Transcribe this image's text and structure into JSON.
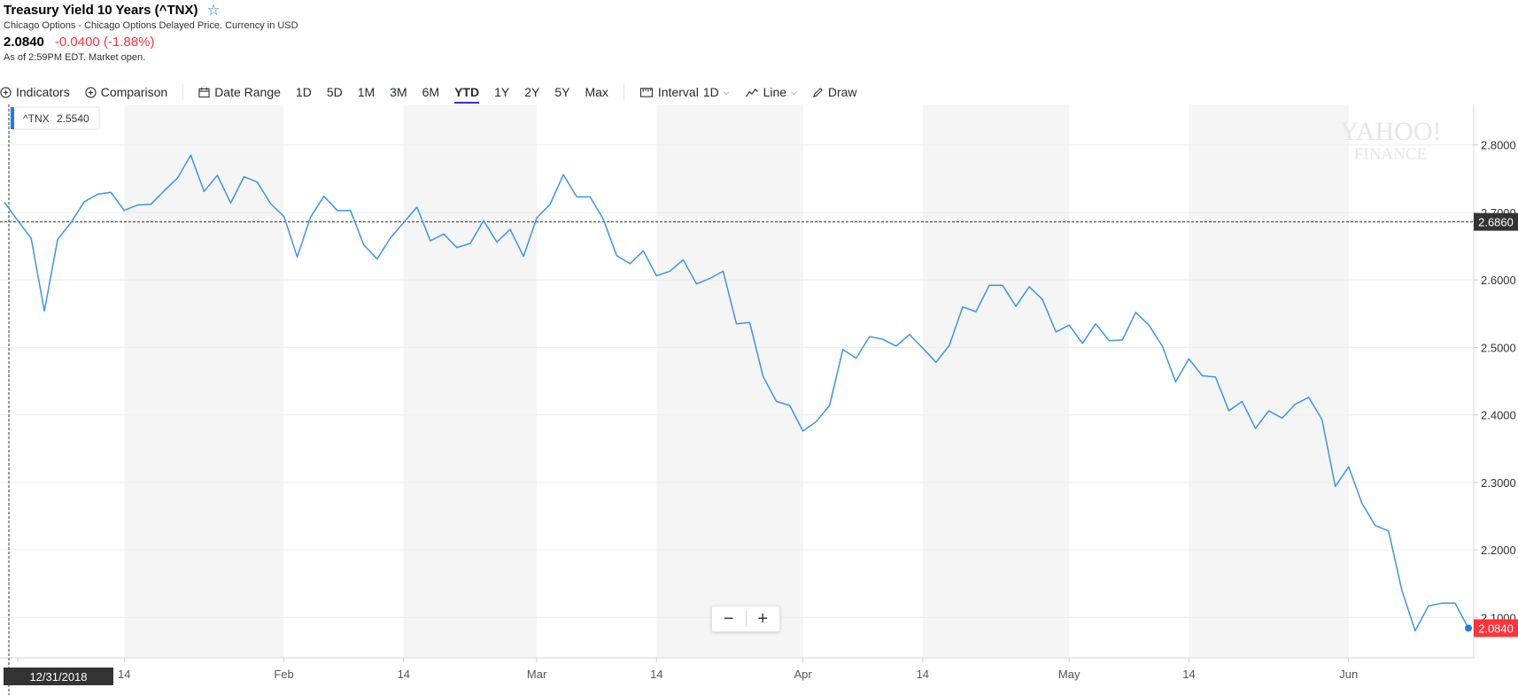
{
  "header": {
    "title": "Treasury Yield 10 Years (^TNX)",
    "subtitle": "Chicago Options - Chicago Options Delayed Price. Currency in USD",
    "price": "2.0840",
    "change": "-0.0400 (-1.88%)",
    "as_of": "As of 2:59PM EDT. Market open."
  },
  "toolbar": {
    "indicators": "Indicators",
    "comparison": "Comparison",
    "date_range": "Date Range",
    "ranges": [
      "1D",
      "5D",
      "1M",
      "3M",
      "6M",
      "YTD",
      "1Y",
      "2Y",
      "5Y",
      "Max"
    ],
    "active_range": "YTD",
    "interval": "Interval",
    "interval_value": "1D",
    "chart_type": "Line",
    "draw": "Draw"
  },
  "chart_data": {
    "type": "line",
    "symbol": "^TNX",
    "legend_value": "2.5540",
    "crosshair_value": "2.6860",
    "crosshair_date": "12/31/2018",
    "last_value": "2.0840",
    "watermark": [
      "YAHOO!",
      "FINANCE"
    ],
    "ylim": [
      2.04,
      2.86
    ],
    "y_ticks": [
      "2.8000",
      "2.7000",
      "2.6000",
      "2.5000",
      "2.4000",
      "2.3000",
      "2.2000",
      "2.1000"
    ],
    "x_labels": [
      "14",
      "Feb",
      "14",
      "Mar",
      "14",
      "Apr",
      "14",
      "May",
      "14",
      "Jun"
    ],
    "x_label_index": [
      9,
      21,
      30,
      40,
      49,
      60,
      69,
      80,
      89,
      101
    ],
    "shade_bands": [
      [
        9,
        21
      ],
      [
        30,
        40
      ],
      [
        49,
        60
      ],
      [
        69,
        80
      ],
      [
        89,
        101
      ]
    ],
    "values": [
      2.715,
      2.688,
      2.662,
      2.554,
      2.66,
      2.685,
      2.716,
      2.727,
      2.73,
      2.703,
      2.711,
      2.712,
      2.732,
      2.751,
      2.785,
      2.731,
      2.755,
      2.714,
      2.753,
      2.745,
      2.713,
      2.694,
      2.634,
      2.693,
      2.724,
      2.703,
      2.703,
      2.652,
      2.631,
      2.662,
      2.685,
      2.708,
      2.658,
      2.668,
      2.648,
      2.654,
      2.688,
      2.656,
      2.675,
      2.635,
      2.692,
      2.712,
      2.756,
      2.723,
      2.723,
      2.69,
      2.636,
      2.624,
      2.643,
      2.606,
      2.613,
      2.63,
      2.594,
      2.602,
      2.613,
      2.535,
      2.537,
      2.457,
      2.42,
      2.414,
      2.376,
      2.39,
      2.414,
      2.497,
      2.484,
      2.516,
      2.512,
      2.502,
      2.519,
      2.499,
      2.478,
      2.503,
      2.56,
      2.553,
      2.592,
      2.592,
      2.561,
      2.59,
      2.571,
      2.523,
      2.533,
      2.506,
      2.535,
      2.51,
      2.511,
      2.552,
      2.533,
      2.502,
      2.449,
      2.483,
      2.458,
      2.456,
      2.406,
      2.42,
      2.38,
      2.406,
      2.395,
      2.416,
      2.426,
      2.393,
      2.294,
      2.323,
      2.269,
      2.236,
      2.228,
      2.14,
      2.08,
      2.117,
      2.121,
      2.121,
      2.084
    ]
  }
}
